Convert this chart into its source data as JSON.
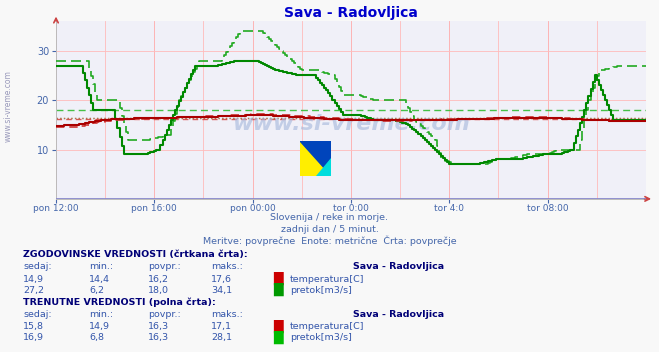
{
  "title": "Sava - Radovljica",
  "title_color": "#0000cc",
  "bg_color": "#f8f8f8",
  "plot_bg_color": "#f0f0f8",
  "xlabel_color": "#4466aa",
  "subtitle_lines": [
    "Slovenija / reke in morje.",
    "zadnji dan / 5 minut.",
    "Meritve: povprečne  Enote: metrične  Črta: povprečje"
  ],
  "x_tick_labels": [
    "pon 12:00",
    "pon 16:00",
    "pon 00:00",
    "tor 0:00",
    "tor 4:0",
    "tor 08:00"
  ],
  "x_tick_positions": [
    0,
    48,
    96,
    144,
    192,
    240
  ],
  "y_ticks": [
    10,
    20,
    30
  ],
  "y_range": [
    0,
    36
  ],
  "x_range": [
    0,
    288
  ],
  "temp_color_solid": "#aa0000",
  "temp_color_dashed": "#cc3333",
  "flow_color_solid": "#008800",
  "flow_color_dashed": "#22aa22",
  "avg_temp_hist": 16.2,
  "avg_flow_hist": 18.0,
  "avg_temp_curr": 16.3,
  "avg_flow_curr": 16.3,
  "watermark": "www.si-vreme.com",
  "table_text_color": "#3355aa",
  "table_bold_color": "#000077",
  "hist_header": "ZGODOVINSKE VREDNOSTI (črtkana črta):",
  "curr_header": "TRENUTNE VREDNOSTI (polna črta):",
  "col_headers": [
    "sedaj:",
    "min.:",
    "povpr.:",
    "maks.:",
    "Sava - Radovljica"
  ],
  "hist_temp_row": [
    "14,9",
    "14,4",
    "16,2",
    "17,6",
    "temperatura[C]"
  ],
  "hist_flow_row": [
    "27,2",
    "6,2",
    "18,0",
    "34,1",
    "pretok[m3/s]"
  ],
  "curr_temp_row": [
    "15,8",
    "14,9",
    "16,3",
    "17,1",
    "temperatura[C]"
  ],
  "curr_flow_row": [
    "16,9",
    "6,8",
    "16,3",
    "28,1",
    "pretok[m3/s]"
  ],
  "temp_icon_color": "#cc0000",
  "flow_icon_color_hist": "#009900",
  "flow_icon_color_curr": "#00bb00",
  "left_label": "www.si-vreme.com",
  "grid_color": "#ffbbbb",
  "grid_vcolor": "#ffcccc",
  "xaxis_line_color": "#8888cc",
  "arrow_color": "#cc4444"
}
